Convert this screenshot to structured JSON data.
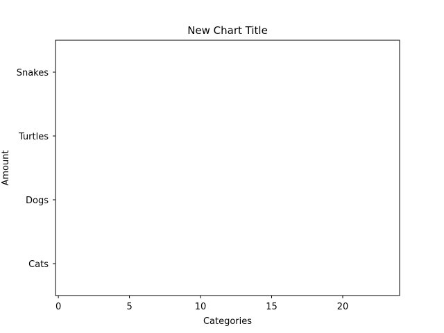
{
  "chart_data": {
    "type": "bar",
    "orientation": "horizontal",
    "title": "New Chart Title",
    "xlabel": "Categories",
    "ylabel": "Amount",
    "categories": [
      "Cats",
      "Dogs",
      "Turtles",
      "Snakes"
    ],
    "values": [
      0,
      0,
      0,
      0
    ],
    "xlim": [
      -0.2,
      24
    ],
    "xticks": [
      0,
      5,
      10,
      15,
      20
    ],
    "grid": false,
    "legend": "none",
    "colors": {
      "axes": "#000000",
      "background": "#ffffff"
    }
  }
}
